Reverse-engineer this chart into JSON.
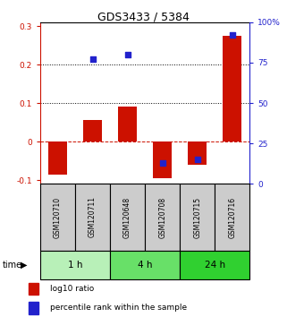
{
  "title": "GDS3433 / 5384",
  "samples": [
    "GSM120710",
    "GSM120711",
    "GSM120648",
    "GSM120708",
    "GSM120715",
    "GSM120716"
  ],
  "log10_ratio": [
    -0.085,
    0.055,
    0.09,
    -0.095,
    -0.06,
    0.275
  ],
  "percentile_rank": [
    null,
    77,
    80,
    13,
    15,
    92
  ],
  "groups": [
    {
      "label": "1 h",
      "samples": [
        0,
        1
      ],
      "color": "#b8f0b8"
    },
    {
      "label": "4 h",
      "samples": [
        2,
        3
      ],
      "color": "#68e068"
    },
    {
      "label": "24 h",
      "samples": [
        4,
        5
      ],
      "color": "#30d030"
    }
  ],
  "bar_color": "#cc1100",
  "dot_color": "#2222cc",
  "ylim_left": [
    -0.11,
    0.31
  ],
  "ylim_right": [
    0,
    100
  ],
  "yticks_left": [
    -0.1,
    0.0,
    0.1,
    0.2,
    0.3
  ],
  "yticks_right": [
    0,
    25,
    50,
    75,
    100
  ],
  "ytick_labels_left": [
    "-0.1",
    "0",
    "0.1",
    "0.2",
    "0.3"
  ],
  "ytick_labels_right": [
    "0",
    "25",
    "50",
    "75",
    "100%"
  ],
  "hlines": [
    0.1,
    0.2
  ],
  "dashed_hline": 0.0,
  "bar_width": 0.55,
  "dot_size": 22,
  "legend_log10": "log10 ratio",
  "legend_pct": "percentile rank within the sample",
  "sample_box_color": "#cccccc"
}
